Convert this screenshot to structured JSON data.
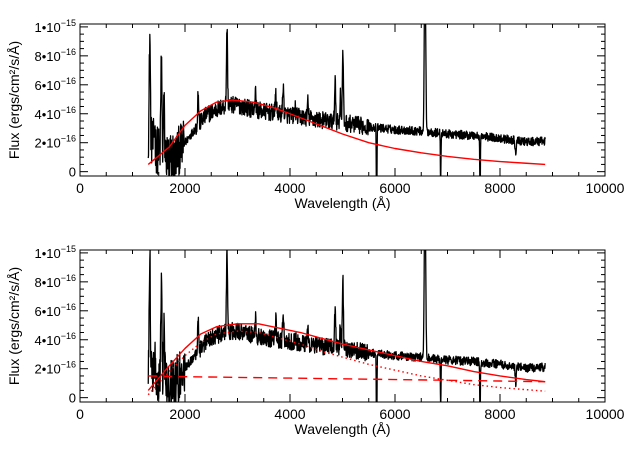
{
  "chart_data": [
    {
      "type": "line",
      "title": "",
      "xlabel": "Wavelength (Å)",
      "ylabel": "Flux (ergs/cm²/s/Å)",
      "xlim": [
        0,
        10000
      ],
      "ylim": [
        -3e-17,
        1.02e-15
      ],
      "xticks": [
        0,
        2000,
        4000,
        6000,
        8000,
        10000
      ],
      "xtick_labels": [
        "0",
        "2000",
        "4000",
        "6000",
        "8000",
        "10000"
      ],
      "yticks": [
        0,
        2e-16,
        4e-16,
        6e-16,
        8e-16,
        1e-15
      ],
      "ytick_labels": [
        {
          "mant": "0",
          "exp": ""
        },
        {
          "mant": "2•10",
          "exp": "−16"
        },
        {
          "mant": "4•10",
          "exp": "−16"
        },
        {
          "mant": "6•10",
          "exp": "−16"
        },
        {
          "mant": "8•10",
          "exp": "−16"
        },
        {
          "mant": "1•10",
          "exp": "−15"
        }
      ],
      "grid": false,
      "series": [
        {
          "kind": "spectrum",
          "color": "#000000",
          "style": "solid",
          "anchors": [
            [
              1300,
              2.5e-16
            ],
            [
              1400,
              1.8e-16
            ],
            [
              1500,
              1.4e-16
            ],
            [
              1700,
              1e-16
            ],
            [
              1850,
              1.3e-16
            ],
            [
              2000,
              2e-16
            ],
            [
              2200,
              3e-16
            ],
            [
              2400,
              3.9e-16
            ],
            [
              2600,
              4.3e-16
            ],
            [
              2800,
              4.6e-16
            ],
            [
              3000,
              4.6e-16
            ],
            [
              3300,
              4.3e-16
            ],
            [
              3600,
              4.1e-16
            ],
            [
              4000,
              3.9e-16
            ],
            [
              4500,
              3.6e-16
            ],
            [
              5000,
              3.4e-16
            ],
            [
              5500,
              3.1e-16
            ],
            [
              6000,
              2.9e-16
            ],
            [
              6500,
              2.8e-16
            ],
            [
              7000,
              2.6e-16
            ],
            [
              7500,
              2.5e-16
            ],
            [
              8000,
              2.3e-16
            ],
            [
              8500,
              2.05e-16
            ],
            [
              8860,
              2.1e-16
            ]
          ],
          "lines": [
            [
              1330,
              9.5e-16
            ],
            [
              1420,
              3.2e-16
            ],
            [
              1550,
              8e-16
            ],
            [
              1600,
              4.4e-16
            ],
            [
              2250,
              5.5e-16
            ],
            [
              2800,
              1e-15
            ],
            [
              3340,
              5.5e-16
            ],
            [
              3730,
              5.5e-16
            ],
            [
              3870,
              6e-16
            ],
            [
              4100,
              4.4e-16
            ],
            [
              4340,
              4.8e-16
            ],
            [
              4860,
              6.5e-16
            ],
            [
              4960,
              5.3e-16
            ],
            [
              5007,
              8.3e-16
            ],
            [
              6563,
              1.05e-15
            ],
            [
              6580,
              1e-15
            ],
            [
              8300,
              1e-16
            ]
          ],
          "dips": [
            [
              1700,
              -2.5e-16
            ],
            [
              1800,
              -1.5e-16
            ],
            [
              5650,
              -4e-16
            ],
            [
              6870,
              -1e-16
            ],
            [
              7620,
              -2e-16
            ]
          ]
        },
        {
          "kind": "model",
          "color": "#ff0000",
          "style": "solid",
          "points": [
            [
              1300,
              5e-17
            ],
            [
              1700,
              1.7e-16
            ],
            [
              2000,
              3.2e-16
            ],
            [
              2300,
              4.2e-16
            ],
            [
              2600,
              4.8e-16
            ],
            [
              2900,
              4.95e-16
            ],
            [
              3300,
              4.8e-16
            ],
            [
              3700,
              4.4e-16
            ],
            [
              4000,
              4e-16
            ],
            [
              4500,
              3.3e-16
            ],
            [
              5000,
              2.6e-16
            ],
            [
              5500,
              2e-16
            ],
            [
              6000,
              1.6e-16
            ],
            [
              6500,
              1.3e-16
            ],
            [
              7000,
              1.05e-16
            ],
            [
              7500,
              8.5e-17
            ],
            [
              8000,
              7e-17
            ],
            [
              8500,
              5.8e-17
            ],
            [
              8860,
              5e-17
            ]
          ]
        }
      ]
    },
    {
      "type": "line",
      "title": "",
      "xlabel": "Wavelength (Å)",
      "ylabel": "Flux (ergs/cm²/s/Å)",
      "xlim": [
        0,
        10000
      ],
      "ylim": [
        -3e-17,
        1.02e-15
      ],
      "xticks": [
        0,
        2000,
        4000,
        6000,
        8000,
        10000
      ],
      "xtick_labels": [
        "0",
        "2000",
        "4000",
        "6000",
        "8000",
        "10000"
      ],
      "yticks": [
        0,
        2e-16,
        4e-16,
        6e-16,
        8e-16,
        1e-15
      ],
      "ytick_labels": [
        {
          "mant": "0",
          "exp": ""
        },
        {
          "mant": "2•10",
          "exp": "−16"
        },
        {
          "mant": "4•10",
          "exp": "−16"
        },
        {
          "mant": "6•10",
          "exp": "−16"
        },
        {
          "mant": "8•10",
          "exp": "−16"
        },
        {
          "mant": "1•10",
          "exp": "−15"
        }
      ],
      "grid": false,
      "series": [
        {
          "kind": "spectrum",
          "color": "#000000",
          "style": "solid",
          "anchors": [
            [
              1300,
              2.5e-16
            ],
            [
              1400,
              1.8e-16
            ],
            [
              1500,
              1.4e-16
            ],
            [
              1700,
              1e-16
            ],
            [
              1850,
              1.3e-16
            ],
            [
              2000,
              2e-16
            ],
            [
              2200,
              3e-16
            ],
            [
              2400,
              3.9e-16
            ],
            [
              2600,
              4.3e-16
            ],
            [
              2800,
              4.6e-16
            ],
            [
              3000,
              4.6e-16
            ],
            [
              3300,
              4.3e-16
            ],
            [
              3600,
              4.1e-16
            ],
            [
              4000,
              3.9e-16
            ],
            [
              4500,
              3.6e-16
            ],
            [
              5000,
              3.4e-16
            ],
            [
              5500,
              3.1e-16
            ],
            [
              6000,
              2.9e-16
            ],
            [
              6500,
              2.8e-16
            ],
            [
              7000,
              2.6e-16
            ],
            [
              7500,
              2.5e-16
            ],
            [
              8000,
              2.3e-16
            ],
            [
              8500,
              2.05e-16
            ],
            [
              8860,
              2.1e-16
            ]
          ],
          "lines": [
            [
              1330,
              9.5e-16
            ],
            [
              1420,
              3.2e-16
            ],
            [
              1550,
              8e-16
            ],
            [
              1600,
              4.4e-16
            ],
            [
              2250,
              5.5e-16
            ],
            [
              2800,
              1e-15
            ],
            [
              3340,
              5.5e-16
            ],
            [
              3730,
              5.5e-16
            ],
            [
              3870,
              6e-16
            ],
            [
              4100,
              4.4e-16
            ],
            [
              4340,
              4.8e-16
            ],
            [
              4860,
              6.5e-16
            ],
            [
              4960,
              5.3e-16
            ],
            [
              5007,
              8.3e-16
            ],
            [
              6563,
              1.05e-15
            ],
            [
              6580,
              1e-15
            ],
            [
              8300,
              1e-16
            ]
          ],
          "dips": [
            [
              1700,
              -2.5e-16
            ],
            [
              1800,
              -1.5e-16
            ],
            [
              5650,
              -4e-16
            ],
            [
              6870,
              -1e-16
            ],
            [
              7620,
              -2e-16
            ]
          ]
        },
        {
          "kind": "model",
          "color": "#ff0000",
          "style": "solid",
          "points": [
            [
              1300,
              5e-17
            ],
            [
              1700,
              2.2e-16
            ],
            [
              2000,
              3.4e-16
            ],
            [
              2300,
              4.4e-16
            ],
            [
              2600,
              4.9e-16
            ],
            [
              3000,
              5.1e-16
            ],
            [
              3400,
              5.1e-16
            ],
            [
              3800,
              4.8e-16
            ],
            [
              4200,
              4.5e-16
            ],
            [
              4600,
              4.1e-16
            ],
            [
              5000,
              3.7e-16
            ],
            [
              5500,
              3.3e-16
            ],
            [
              6000,
              2.9e-16
            ],
            [
              6500,
              2.5e-16
            ],
            [
              7000,
              2.2e-16
            ],
            [
              7500,
              1.8e-16
            ],
            [
              8000,
              1.5e-16
            ],
            [
              8500,
              1.25e-16
            ],
            [
              8860,
              1.1e-16
            ]
          ]
        },
        {
          "kind": "component",
          "color": "#ff0000",
          "style": "dotted",
          "points": [
            [
              1300,
              2e-17
            ],
            [
              1700,
              1.8e-16
            ],
            [
              2000,
              2.9e-16
            ],
            [
              2300,
              3.8e-16
            ],
            [
              2600,
              4.4e-16
            ],
            [
              3000,
              4.6e-16
            ],
            [
              3400,
              4.5e-16
            ],
            [
              3800,
              4.1e-16
            ],
            [
              4200,
              3.7e-16
            ],
            [
              4600,
              3.2e-16
            ],
            [
              5000,
              2.8e-16
            ],
            [
              5500,
              2.3e-16
            ],
            [
              6000,
              1.9e-16
            ],
            [
              6500,
              1.5e-16
            ],
            [
              7000,
              1.2e-16
            ],
            [
              7500,
              9e-17
            ],
            [
              8000,
              7e-17
            ],
            [
              8500,
              5.5e-17
            ],
            [
              8860,
              4.5e-17
            ]
          ]
        },
        {
          "kind": "component",
          "color": "#ff0000",
          "style": "dashed",
          "points": [
            [
              1300,
              1.5e-16
            ],
            [
              2000,
              1.45e-16
            ],
            [
              3000,
              1.4e-16
            ],
            [
              4000,
              1.35e-16
            ],
            [
              5000,
              1.3e-16
            ],
            [
              6000,
              1.25e-16
            ],
            [
              7000,
              1.2e-16
            ],
            [
              8000,
              1.15e-16
            ],
            [
              8860,
              1.1e-16
            ]
          ]
        }
      ]
    }
  ]
}
